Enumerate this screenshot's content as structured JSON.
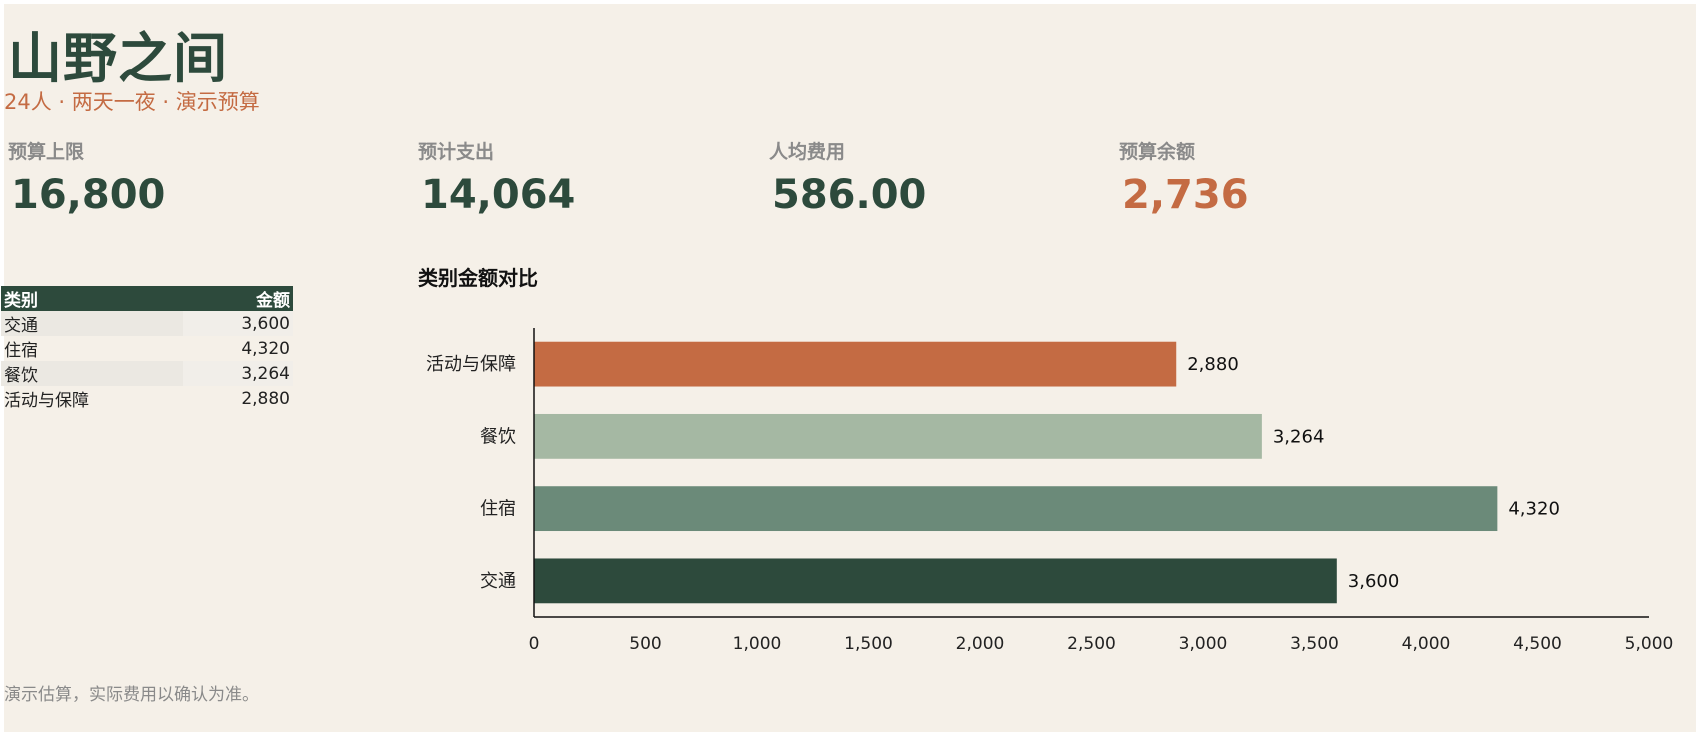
{
  "header": {
    "title": "山野之间",
    "subtitle": "24人 · 两天一夜 · 演示预算"
  },
  "kpis": [
    {
      "label": "预算上限",
      "value": "16,800"
    },
    {
      "label": "预计支出",
      "value": "14,064"
    },
    {
      "label": "人均费用",
      "value": "586.00"
    },
    {
      "label": "预算余额",
      "value": "2,736"
    }
  ],
  "table": {
    "headers": [
      "类别",
      "金额"
    ],
    "rows": [
      [
        "交通",
        "3,600"
      ],
      [
        "住宿",
        "4,320"
      ],
      [
        "餐饮",
        "3,264"
      ],
      [
        "活动与保障",
        "2,880"
      ]
    ]
  },
  "chart_data": {
    "type": "bar",
    "orientation": "horizontal",
    "title": "类别金额对比",
    "categories": [
      "活动与保障",
      "餐饮",
      "住宿",
      "交通"
    ],
    "values": [
      2880,
      3264,
      4320,
      3600
    ],
    "value_labels": [
      "2,880",
      "3,264",
      "4,320",
      "3,600"
    ],
    "colors": [
      "#c46b43",
      "#a5b8a3",
      "#6b8a79",
      "#2d4a3c"
    ],
    "xlim": [
      0,
      5000
    ],
    "xticks": [
      0,
      500,
      1000,
      1500,
      2000,
      2500,
      3000,
      3500,
      4000,
      4500,
      5000
    ],
    "xtick_labels": [
      "0",
      "500",
      "1,000",
      "1,500",
      "2,000",
      "2,500",
      "3,000",
      "3,500",
      "4,000",
      "4,500",
      "5,000"
    ],
    "grid": false,
    "legend": "none"
  },
  "footer": {
    "note": "演示估算，实际费用以确认为准。"
  }
}
